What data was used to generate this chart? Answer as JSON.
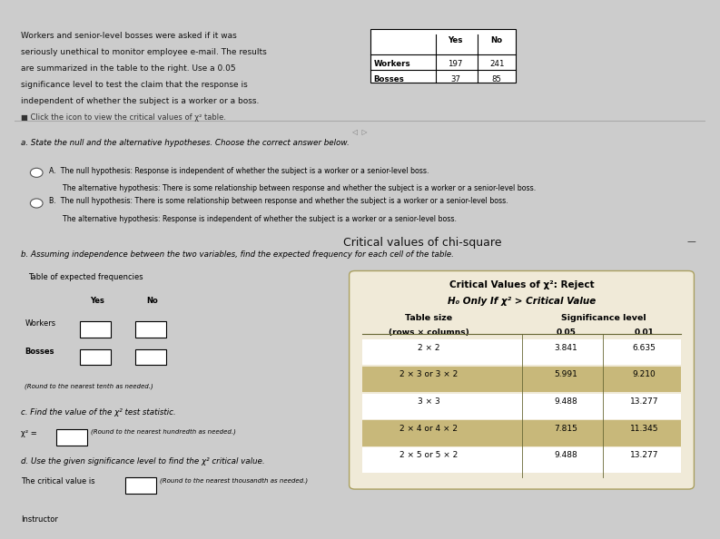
{
  "bg_color": "#cccccc",
  "top_bar_color": "#8b1a1a",
  "panel_bg": "#eeeeee",
  "chi_panel_bg": "#e0e0e0",
  "problem_text_lines": [
    "Workers and senior-level bosses were asked if it was",
    "seriously unethical to monitor employee e-mail. The results",
    "are summarized in the table to the right. Use a 0.05",
    "significance level to test the claim that the response is",
    "independent of whether the subject is a worker or a boss.",
    "■ Click the icon to view the critical values of χ² table."
  ],
  "data_table_headers": [
    "",
    "Yes",
    "No"
  ],
  "data_table_rows": [
    [
      "Workers",
      "197",
      "241"
    ],
    [
      "Bosses",
      "37",
      "85"
    ]
  ],
  "part_a_text": "a. State the null and the alternative hypotheses. Choose the correct answer below.",
  "option_A_line1": "A.  The null hypothesis: Response is independent of whether the subject is a worker or a senior-level boss.",
  "option_A_line2": "      The alternative hypothesis: There is some relationship between response and whether the subject is a worker or a senior-level boss.",
  "option_B_line1": "B.  The null hypothesis: There is some relationship between response and whether the subject is a worker or a senior-level boss.",
  "option_B_line2": "      The alternative hypothesis: Response is independent of whether the subject is a worker or a senior-level boss.",
  "part_b_text": "b. Assuming independence between the two variables, find the expected frequency for each cell of the table.",
  "expected_table_title": "Table of expected frequencies",
  "expected_rows": [
    "Workers",
    "Bosses"
  ],
  "round_note_b": "(Round to the nearest tenth as needed.)",
  "part_c_label": "c. Find the value of the χ² test statistic.",
  "part_c_eq": "χ² =",
  "part_c_note": "(Round to the nearest hundredth as needed.)",
  "part_d_label": "d. Use the given significance level to find the χ² critical value.",
  "part_d_text": "The critical value is",
  "part_d_note": "(Round to the nearest thousandth as needed.)",
  "instructor_text": "Instructor",
  "chi_panel_title": "Critical values of chi-square",
  "chi_inner_title1": "Critical Values of χ²: Reject",
  "chi_inner_title2": "H₀ Only If χ² > Critical Value",
  "chi_col1_header": "Table size",
  "chi_col1_sub": "(rows × columns)",
  "chi_col2_header": "Significance level",
  "chi_col2_sub1": "0.05",
  "chi_col2_sub2": "0.01",
  "chi_rows": [
    [
      "2 × 2",
      "3.841",
      "6.635"
    ],
    [
      "2 × 3 or 3 × 2",
      "5.991",
      "9.210"
    ],
    [
      "3 × 3",
      "9.488",
      "13.277"
    ],
    [
      "2 × 4 or 4 × 2",
      "7.815",
      "11.345"
    ],
    [
      "2 × 5 or 5 × 2",
      "9.488",
      "13.277"
    ]
  ],
  "chi_row_colors": [
    "#ffffff",
    "#c8b87a",
    "#ffffff",
    "#c8b87a",
    "#ffffff"
  ],
  "chi_header_color": "#c8b87a"
}
